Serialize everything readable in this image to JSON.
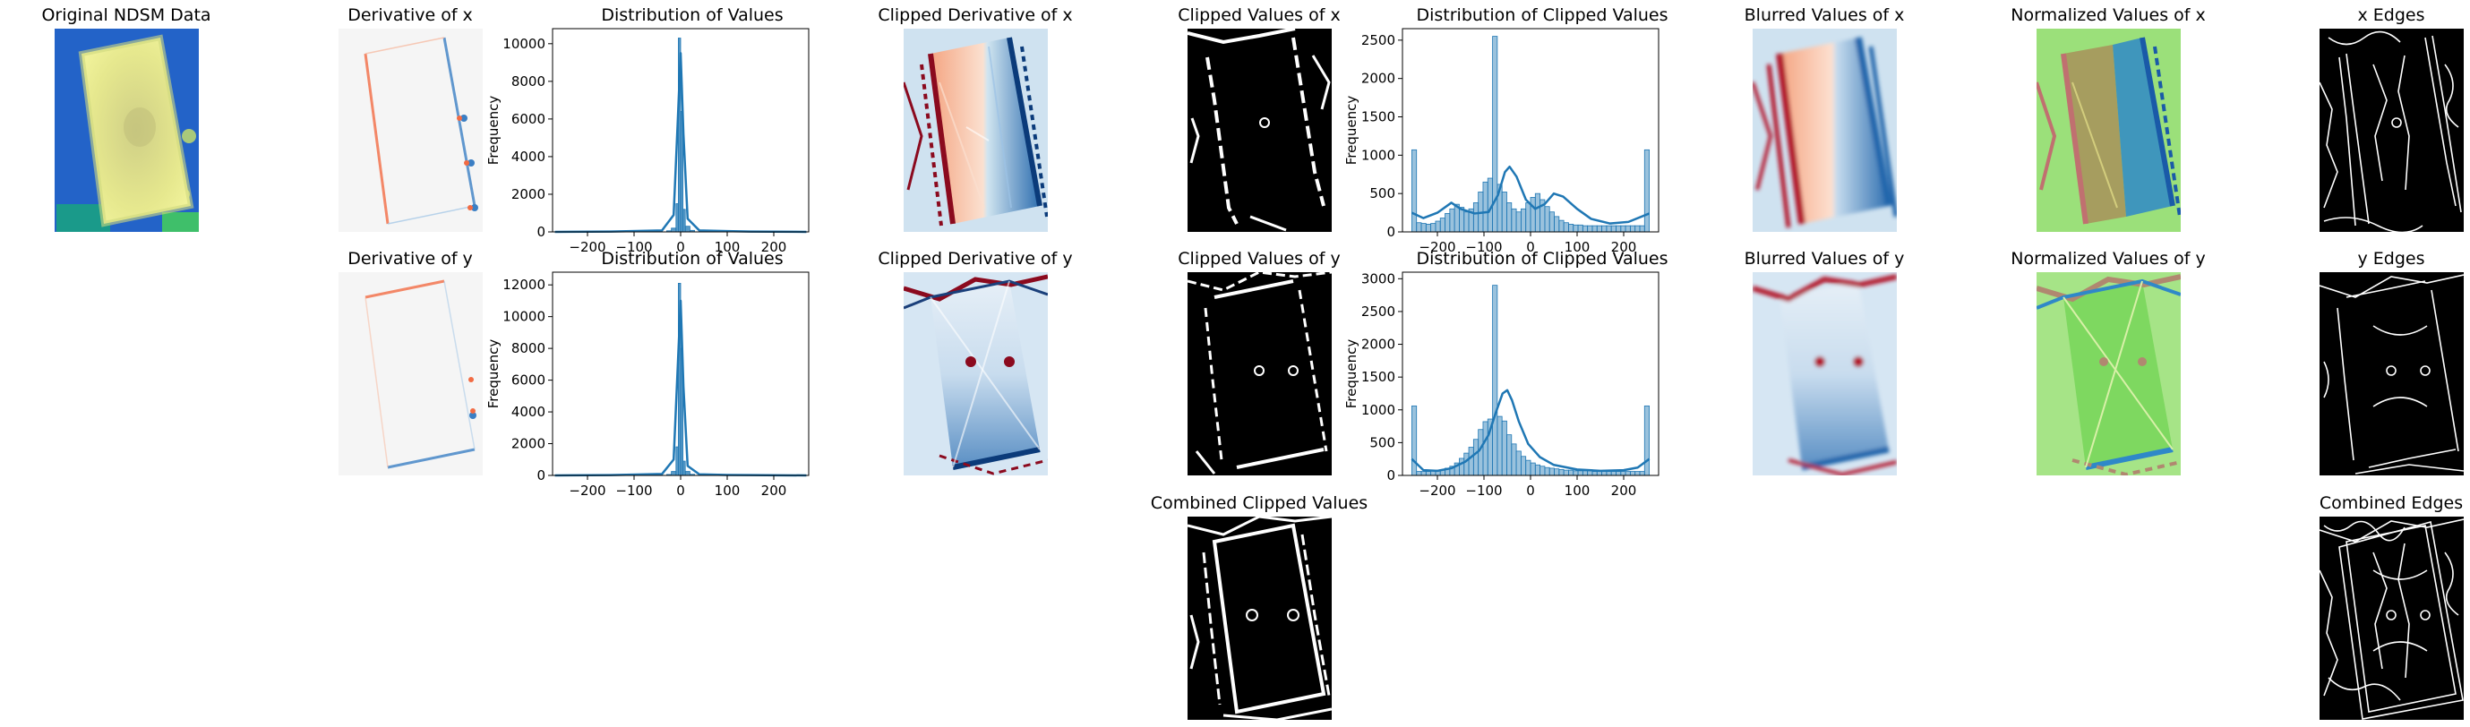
{
  "panels": {
    "ndsm": "Original NDSM Data",
    "deriv_x": "Derivative of x",
    "deriv_y": "Derivative of y",
    "clip_deriv_x": "Clipped Derivative of x",
    "clip_deriv_y": "Clipped Derivative of y",
    "clip_vals_x": "Clipped Values  of x",
    "clip_vals_y": "Clipped Values  of y",
    "combined_clipped": "Combined Clipped Values",
    "blur_x": "Blurred Values of x",
    "blur_y": "Blurred Values of y",
    "norm_x": "Normalized Values of x",
    "norm_y": "Normalized Values of y",
    "edges_x": "x Edges",
    "edges_y": "y Edges",
    "edges_combined": "Combined Edges"
  },
  "colors": {
    "series": "#1f77b4",
    "ndsm_bg": "#1f5fc4",
    "ndsm_obj": "#e8ea8c",
    "deriv_neg": "#f26b43",
    "deriv_pos": "#3b7fc4"
  },
  "chart_data": [
    {
      "id": "dist_x",
      "type": "bar",
      "title": "Distribution of Values",
      "xlabel": "",
      "ylabel": "Frequency",
      "xlim": [
        -275,
        275
      ],
      "ylim": [
        0,
        10800
      ],
      "xticks": [
        -200,
        -100,
        0,
        100,
        200
      ],
      "yticks": [
        0,
        2000,
        4000,
        6000,
        8000,
        10000
      ],
      "xticklabels": [
        "−200",
        "−100",
        "0",
        "100",
        "200"
      ],
      "yticklabels": [
        "0",
        "2000",
        "4000",
        "6000",
        "8000",
        "10000"
      ],
      "bin_edges": [
        -30,
        -20,
        -10,
        -5,
        0,
        5,
        10,
        20,
        30
      ],
      "values": [
        60,
        200,
        1500,
        10300,
        6400,
        1200,
        300,
        80
      ],
      "kde_x": [
        -270,
        -150,
        -40,
        -15,
        -6,
        0,
        6,
        15,
        40,
        100,
        150,
        270
      ],
      "kde_y": [
        0,
        20,
        80,
        900,
        6000,
        9500,
        5200,
        700,
        80,
        40,
        20,
        0
      ]
    },
    {
      "id": "dist_y",
      "type": "bar",
      "title": "Distribution of Values",
      "xlabel": "",
      "ylabel": "Frequency",
      "xlim": [
        -275,
        275
      ],
      "ylim": [
        0,
        12800
      ],
      "xticks": [
        -200,
        -100,
        0,
        100,
        200
      ],
      "yticks": [
        0,
        2000,
        4000,
        6000,
        8000,
        10000,
        12000
      ],
      "xticklabels": [
        "−200",
        "−100",
        "0",
        "100",
        "200"
      ],
      "yticklabels": [
        "0",
        "2000",
        "4000",
        "6000",
        "8000",
        "10000",
        "12000"
      ],
      "bin_edges": [
        -30,
        -20,
        -10,
        -5,
        0,
        5,
        10,
        20,
        30
      ],
      "values": [
        60,
        250,
        1800,
        12100,
        8000,
        900,
        250,
        70
      ],
      "kde_x": [
        -270,
        -150,
        -40,
        -15,
        -6,
        0,
        6,
        15,
        40,
        100,
        150,
        270
      ],
      "kde_y": [
        0,
        20,
        90,
        1000,
        7000,
        11000,
        5600,
        600,
        70,
        30,
        20,
        0
      ]
    },
    {
      "id": "dist_clip_x",
      "type": "bar",
      "title": "Distribution of Clipped Values",
      "xlabel": "",
      "ylabel": "Frequency",
      "xlim": [
        -275,
        275
      ],
      "ylim": [
        0,
        2650
      ],
      "xticks": [
        -200,
        -100,
        0,
        100,
        200
      ],
      "yticks": [
        0,
        500,
        1000,
        1500,
        2000,
        2500
      ],
      "xticklabels": [
        "−200",
        "−100",
        "0",
        "100",
        "200"
      ],
      "yticklabels": [
        "0",
        "500",
        "1000",
        "1500",
        "2000",
        "2500"
      ],
      "bin_start": -255,
      "bin_width": 10.2,
      "values": [
        1070,
        120,
        110,
        100,
        110,
        140,
        180,
        240,
        300,
        360,
        320,
        260,
        300,
        380,
        520,
        650,
        700,
        2550,
        620,
        520,
        380,
        300,
        260,
        300,
        380,
        450,
        500,
        420,
        330,
        260,
        200,
        150,
        120,
        100,
        90,
        90,
        80,
        80,
        80,
        80,
        80,
        80,
        80,
        80,
        80,
        80,
        80,
        80,
        80,
        1070
      ],
      "kde_x": [
        -255,
        -230,
        -200,
        -170,
        -150,
        -120,
        -90,
        -70,
        -55,
        -45,
        -30,
        -10,
        10,
        30,
        50,
        70,
        100,
        130,
        170,
        210,
        255
      ],
      "kde_y": [
        250,
        180,
        250,
        380,
        300,
        240,
        260,
        480,
        780,
        850,
        720,
        420,
        300,
        360,
        500,
        460,
        300,
        170,
        110,
        130,
        240
      ]
    },
    {
      "id": "dist_clip_y",
      "type": "bar",
      "title": "Distribution of Clipped Values",
      "xlabel": "",
      "ylabel": "Frequency",
      "xlim": [
        -275,
        275
      ],
      "ylim": [
        0,
        3100
      ],
      "xticks": [
        -200,
        -100,
        0,
        100,
        200
      ],
      "yticks": [
        0,
        500,
        1000,
        1500,
        2000,
        2500,
        3000
      ],
      "xticklabels": [
        "−200",
        "−100",
        "0",
        "100",
        "200"
      ],
      "yticklabels": [
        "0",
        "500",
        "1000",
        "1500",
        "2000",
        "2500",
        "3000"
      ],
      "bin_start": -255,
      "bin_width": 10.2,
      "values": [
        1060,
        60,
        60,
        60,
        70,
        80,
        90,
        110,
        140,
        190,
        260,
        340,
        430,
        550,
        700,
        820,
        860,
        2900,
        900,
        830,
        620,
        480,
        370,
        290,
        230,
        190,
        160,
        140,
        120,
        110,
        100,
        90,
        80,
        80,
        70,
        70,
        70,
        70,
        60,
        60,
        60,
        60,
        60,
        60,
        60,
        60,
        60,
        60,
        60,
        1060
      ],
      "kde_x": [
        -255,
        -230,
        -200,
        -170,
        -140,
        -110,
        -90,
        -75,
        -60,
        -50,
        -40,
        -25,
        -5,
        20,
        50,
        100,
        150,
        200,
        230,
        255
      ],
      "kde_y": [
        250,
        80,
        70,
        110,
        210,
        380,
        620,
        950,
        1250,
        1300,
        1150,
        820,
        480,
        280,
        160,
        90,
        70,
        80,
        120,
        250
      ]
    }
  ]
}
